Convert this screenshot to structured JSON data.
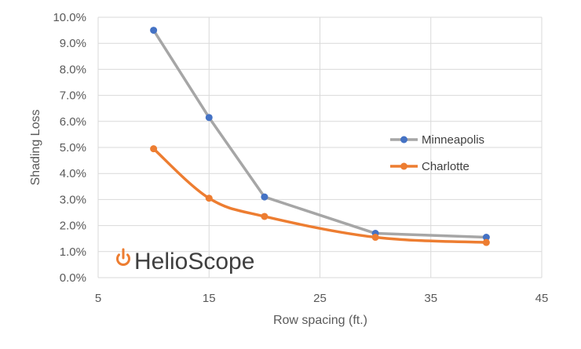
{
  "chart_data": {
    "type": "line",
    "title": "",
    "xlabel": "Row spacing (ft.)",
    "ylabel": "Shading Loss",
    "xlim": [
      5,
      45
    ],
    "ylim": [
      0,
      10
    ],
    "x_ticks": [
      "5",
      "15",
      "25",
      "35",
      "45"
    ],
    "y_ticks": [
      "0.0%",
      "1.0%",
      "2.0%",
      "3.0%",
      "4.0%",
      "5.0%",
      "6.0%",
      "7.0%",
      "8.0%",
      "9.0%",
      "10.0%"
    ],
    "grid": true,
    "legend_position": "right",
    "series": [
      {
        "name": "Minneapolis",
        "line_color": "#a6a6a6",
        "marker_color": "#4472c4",
        "smooth": false,
        "x": [
          10,
          15,
          20,
          30,
          40
        ],
        "y": [
          9.5,
          6.15,
          3.1,
          1.7,
          1.55
        ]
      },
      {
        "name": "Charlotte",
        "line_color": "#ed7d31",
        "marker_color": "#ed7d31",
        "smooth": true,
        "x": [
          10,
          15,
          20,
          30,
          40
        ],
        "y": [
          4.95,
          3.05,
          2.35,
          1.55,
          1.35
        ]
      }
    ]
  },
  "branding": {
    "text": "HelioScope",
    "icon": "power-icon",
    "icon_color": "#ed7d31"
  }
}
